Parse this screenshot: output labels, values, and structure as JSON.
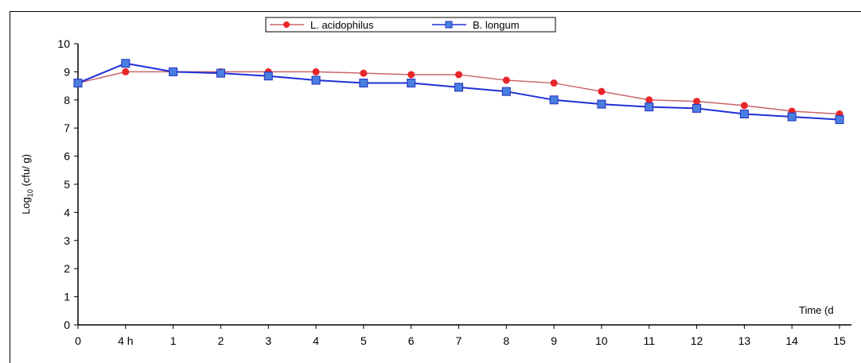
{
  "chart_data": {
    "type": "line",
    "categories": [
      "0",
      "4 h",
      "1",
      "2",
      "3",
      "4",
      "5",
      "6",
      "7",
      "8",
      "9",
      "10",
      "11",
      "12",
      "13",
      "14",
      "15"
    ],
    "series": [
      {
        "name": "L. acidophilus",
        "color": "#e8262a",
        "line_color": "#c8656a",
        "marker": "circle",
        "values": [
          8.6,
          9.0,
          9.0,
          9.0,
          9.0,
          9.0,
          8.95,
          8.9,
          8.9,
          8.7,
          8.6,
          8.3,
          8.0,
          7.95,
          7.8,
          7.6,
          7.5
        ]
      },
      {
        "name": "B. longum",
        "color": "#4a7fe0",
        "line_color": "#1f2fd6",
        "marker": "square",
        "values": [
          8.6,
          9.3,
          9.0,
          8.95,
          8.85,
          8.7,
          8.6,
          8.6,
          8.45,
          8.3,
          8.0,
          7.85,
          7.75,
          7.7,
          7.5,
          7.4,
          7.3
        ]
      }
    ],
    "yticks": [
      "0",
      "1",
      "2",
      "3",
      "4",
      "5",
      "6",
      "7",
      "8",
      "9",
      "10"
    ],
    "ylim": [
      0,
      10
    ],
    "ylabel": {
      "base": "Log",
      "sub": "10",
      "rest": " (cfu/ g)"
    },
    "xlabel": "Time (d",
    "grid": false,
    "legend_position": "top-center"
  }
}
